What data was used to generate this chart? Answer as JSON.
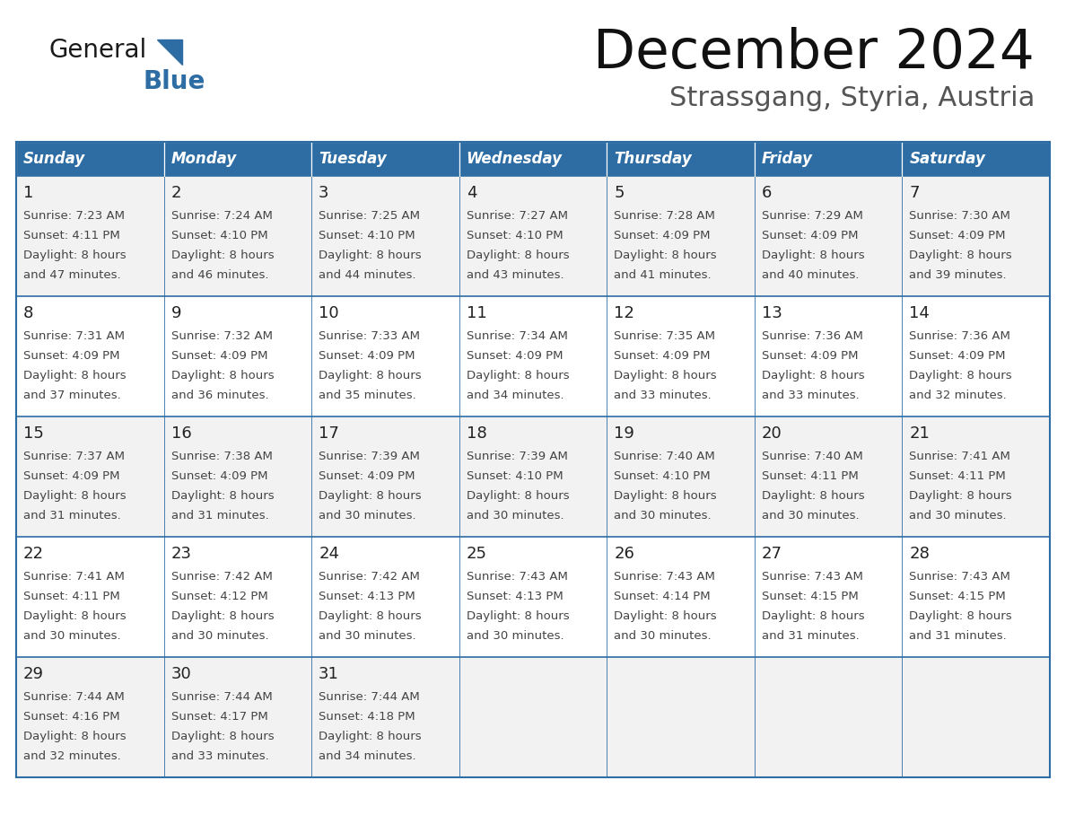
{
  "title": "December 2024",
  "subtitle": "Strassgang, Styria, Austria",
  "days_of_week": [
    "Sunday",
    "Monday",
    "Tuesday",
    "Wednesday",
    "Thursday",
    "Friday",
    "Saturday"
  ],
  "header_bg": "#2E6DA4",
  "header_text": "#FFFFFF",
  "cell_bg_odd": "#F2F2F2",
  "cell_bg_even": "#FFFFFF",
  "border_color": "#2E6DA4",
  "day_num_color": "#222222",
  "cell_text_color": "#444444",
  "title_color": "#111111",
  "subtitle_color": "#555555",
  "logo_general_color": "#1a1a1a",
  "logo_blue_color": "#2E6DA4",
  "weeks": [
    [
      {
        "day": 1,
        "sunrise": "7:23 AM",
        "sunset": "4:11 PM",
        "daylight_min": "47"
      },
      {
        "day": 2,
        "sunrise": "7:24 AM",
        "sunset": "4:10 PM",
        "daylight_min": "46"
      },
      {
        "day": 3,
        "sunrise": "7:25 AM",
        "sunset": "4:10 PM",
        "daylight_min": "44"
      },
      {
        "day": 4,
        "sunrise": "7:27 AM",
        "sunset": "4:10 PM",
        "daylight_min": "43"
      },
      {
        "day": 5,
        "sunrise": "7:28 AM",
        "sunset": "4:09 PM",
        "daylight_min": "41"
      },
      {
        "day": 6,
        "sunrise": "7:29 AM",
        "sunset": "4:09 PM",
        "daylight_min": "40"
      },
      {
        "day": 7,
        "sunrise": "7:30 AM",
        "sunset": "4:09 PM",
        "daylight_min": "39"
      }
    ],
    [
      {
        "day": 8,
        "sunrise": "7:31 AM",
        "sunset": "4:09 PM",
        "daylight_min": "37"
      },
      {
        "day": 9,
        "sunrise": "7:32 AM",
        "sunset": "4:09 PM",
        "daylight_min": "36"
      },
      {
        "day": 10,
        "sunrise": "7:33 AM",
        "sunset": "4:09 PM",
        "daylight_min": "35"
      },
      {
        "day": 11,
        "sunrise": "7:34 AM",
        "sunset": "4:09 PM",
        "daylight_min": "34"
      },
      {
        "day": 12,
        "sunrise": "7:35 AM",
        "sunset": "4:09 PM",
        "daylight_min": "33"
      },
      {
        "day": 13,
        "sunrise": "7:36 AM",
        "sunset": "4:09 PM",
        "daylight_min": "33"
      },
      {
        "day": 14,
        "sunrise": "7:36 AM",
        "sunset": "4:09 PM",
        "daylight_min": "32"
      }
    ],
    [
      {
        "day": 15,
        "sunrise": "7:37 AM",
        "sunset": "4:09 PM",
        "daylight_min": "31"
      },
      {
        "day": 16,
        "sunrise": "7:38 AM",
        "sunset": "4:09 PM",
        "daylight_min": "31"
      },
      {
        "day": 17,
        "sunrise": "7:39 AM",
        "sunset": "4:09 PM",
        "daylight_min": "30"
      },
      {
        "day": 18,
        "sunrise": "7:39 AM",
        "sunset": "4:10 PM",
        "daylight_min": "30"
      },
      {
        "day": 19,
        "sunrise": "7:40 AM",
        "sunset": "4:10 PM",
        "daylight_min": "30"
      },
      {
        "day": 20,
        "sunrise": "7:40 AM",
        "sunset": "4:11 PM",
        "daylight_min": "30"
      },
      {
        "day": 21,
        "sunrise": "7:41 AM",
        "sunset": "4:11 PM",
        "daylight_min": "30"
      }
    ],
    [
      {
        "day": 22,
        "sunrise": "7:41 AM",
        "sunset": "4:11 PM",
        "daylight_min": "30"
      },
      {
        "day": 23,
        "sunrise": "7:42 AM",
        "sunset": "4:12 PM",
        "daylight_min": "30"
      },
      {
        "day": 24,
        "sunrise": "7:42 AM",
        "sunset": "4:13 PM",
        "daylight_min": "30"
      },
      {
        "day": 25,
        "sunrise": "7:43 AM",
        "sunset": "4:13 PM",
        "daylight_min": "30"
      },
      {
        "day": 26,
        "sunrise": "7:43 AM",
        "sunset": "4:14 PM",
        "daylight_min": "30"
      },
      {
        "day": 27,
        "sunrise": "7:43 AM",
        "sunset": "4:15 PM",
        "daylight_min": "31"
      },
      {
        "day": 28,
        "sunrise": "7:43 AM",
        "sunset": "4:15 PM",
        "daylight_min": "31"
      }
    ],
    [
      {
        "day": 29,
        "sunrise": "7:44 AM",
        "sunset": "4:16 PM",
        "daylight_min": "32"
      },
      {
        "day": 30,
        "sunrise": "7:44 AM",
        "sunset": "4:17 PM",
        "daylight_min": "33"
      },
      {
        "day": 31,
        "sunrise": "7:44 AM",
        "sunset": "4:18 PM",
        "daylight_min": "34"
      },
      null,
      null,
      null,
      null
    ]
  ]
}
